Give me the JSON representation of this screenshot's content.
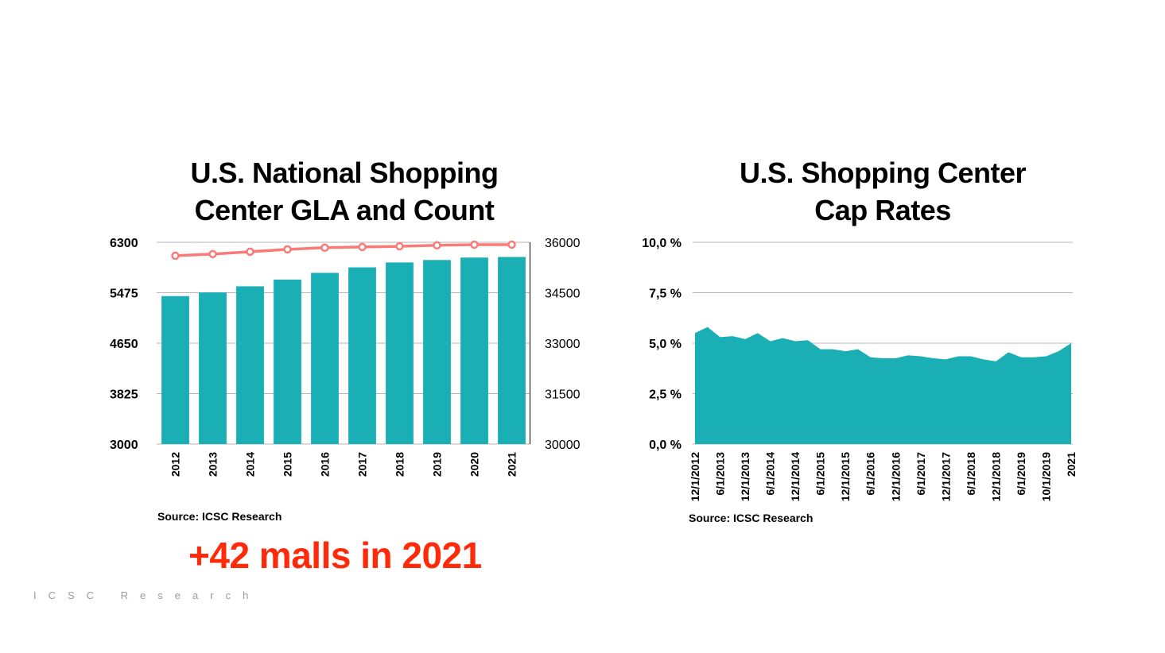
{
  "slide": {
    "annotation": "+42 malls in 2021",
    "footer": "ICSC Research"
  },
  "colors": {
    "bar": "#1aaeb5",
    "line": "#f77b78",
    "area": "#1aaeb5",
    "annotation": "#ff2a0a",
    "grid": "#b4b4b4"
  },
  "chart_data": [
    {
      "type": "bar",
      "title": "U.S. National Shopping Center GLA and Count",
      "title_lines": [
        "U.S. National Shopping",
        "Center GLA and Count"
      ],
      "source": "Source: ICSC Research",
      "categories": [
        "2012",
        "2013",
        "2014",
        "2015",
        "2016",
        "2017",
        "2018",
        "2019",
        "2020",
        "2021"
      ],
      "series": [
        {
          "name": "GLA",
          "type": "bar",
          "axis": "left",
          "values": [
            5420,
            5480,
            5580,
            5690,
            5800,
            5890,
            5970,
            6010,
            6050,
            6060
          ]
        },
        {
          "name": "Count",
          "type": "line",
          "axis": "right",
          "values": [
            35600,
            35650,
            35720,
            35790,
            35840,
            35860,
            35880,
            35910,
            35930,
            35930
          ]
        }
      ],
      "y_left": {
        "ticks": [
          "6300",
          "5475",
          "4650",
          "3825",
          "3000"
        ],
        "ylim": [
          3000,
          6300
        ]
      },
      "y_right": {
        "ticks": [
          "36000",
          "34500",
          "33000",
          "31500",
          "30000"
        ],
        "ylim": [
          30000,
          36000
        ]
      },
      "grid": true,
      "legend": "none"
    },
    {
      "type": "area",
      "title": "U.S. Shopping Center Cap Rates",
      "title_lines": [
        "U.S. Shopping Center",
        "Cap Rates"
      ],
      "source": "Source: ICSC Research",
      "x_tick_labels": [
        "12/1/2012",
        "6/1/2013",
        "12/1/2013",
        "6/1/2014",
        "12/1/2014",
        "6/1/2015",
        "12/1/2015",
        "6/1/2016",
        "12/1/2016",
        "6/1/2017",
        "12/1/2017",
        "6/1/2018",
        "12/1/2018",
        "6/1/2019",
        "10/1/2019",
        "2021"
      ],
      "values": [
        5.5,
        5.8,
        5.3,
        5.35,
        5.2,
        5.5,
        5.1,
        5.25,
        5.1,
        5.15,
        4.7,
        4.7,
        4.6,
        4.7,
        4.3,
        4.25,
        4.25,
        4.4,
        4.35,
        4.25,
        4.2,
        4.35,
        4.35,
        4.2,
        4.1,
        4.55,
        4.3,
        4.3,
        4.35,
        4.6,
        5.0
      ],
      "y_ticks": [
        "10,0 %",
        "7,5 %",
        "5,0 %",
        "2,5 %",
        "0,0 %"
      ],
      "ylim": [
        0,
        10
      ],
      "grid": true,
      "legend": "none"
    }
  ]
}
